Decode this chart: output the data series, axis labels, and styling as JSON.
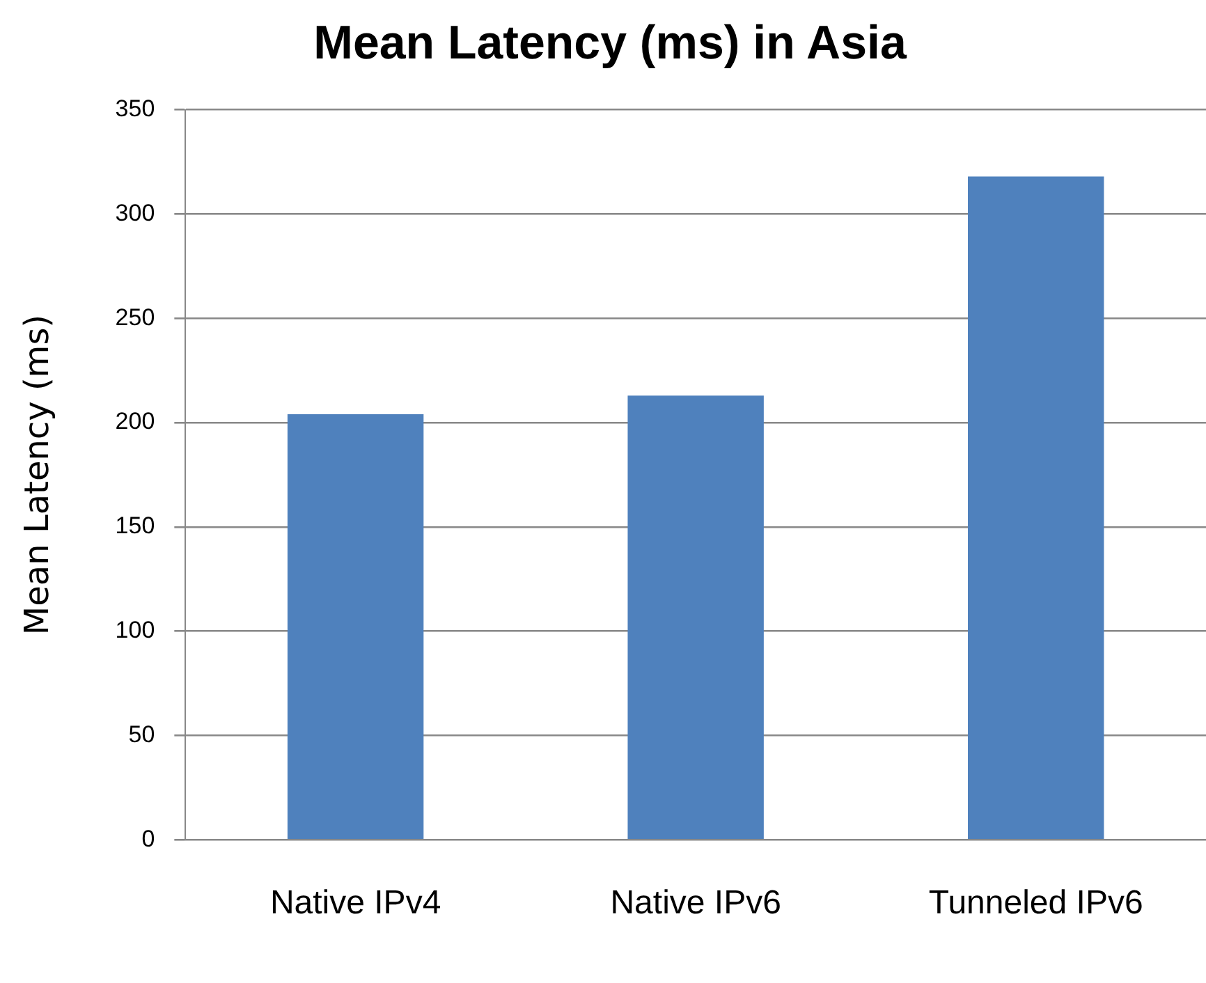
{
  "chart_data": {
    "type": "bar",
    "title": "Mean Latency (ms) in Asia",
    "ylabel": "Mean Latency (ms)",
    "categories": [
      "Native IPv4",
      "Native IPv6",
      "Tunneled IPv6"
    ],
    "values": [
      204,
      213,
      318
    ],
    "color": "#4f81bd",
    "ylim": [
      0,
      350
    ],
    "yticks": [
      0,
      50,
      100,
      150,
      200,
      250,
      300,
      350
    ],
    "grid": "y"
  }
}
